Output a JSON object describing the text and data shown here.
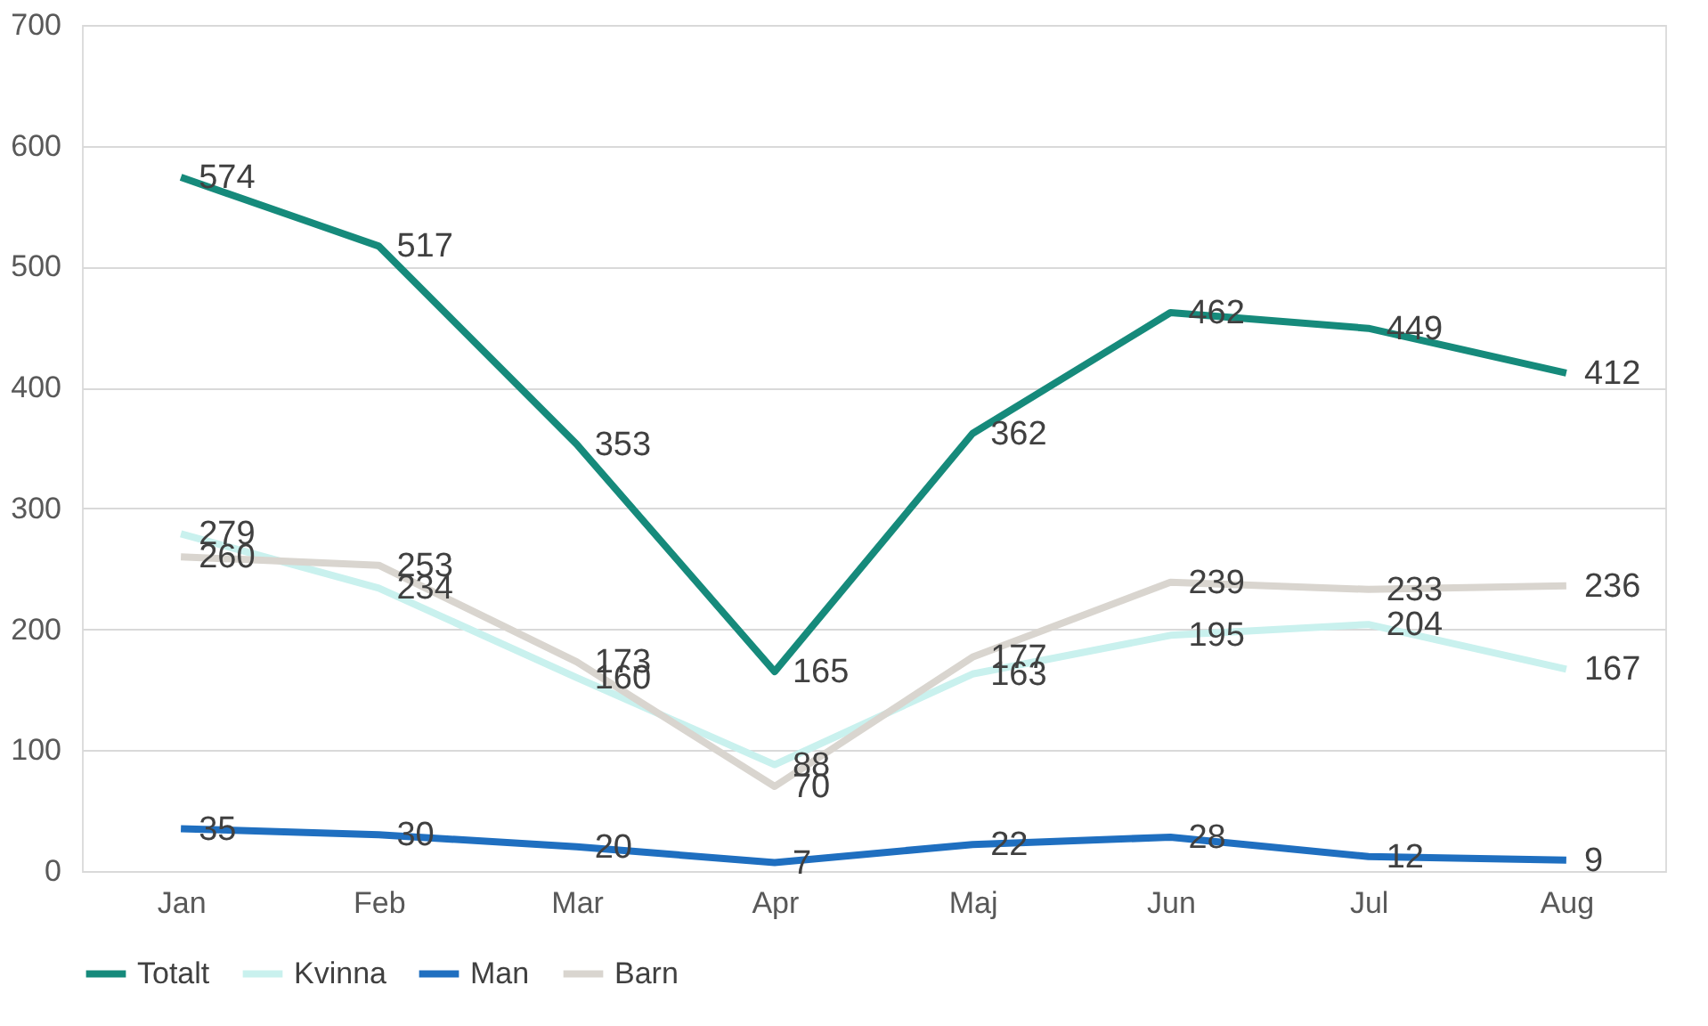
{
  "chart_data": {
    "type": "line",
    "categories": [
      "Jan",
      "Feb",
      "Mar",
      "Apr",
      "Maj",
      "Jun",
      "Jul",
      "Aug"
    ],
    "series": [
      {
        "name": "Totalt",
        "color": "#168a7b",
        "values": [
          574,
          517,
          353,
          165,
          362,
          462,
          449,
          412
        ]
      },
      {
        "name": "Kvinna",
        "color": "#c9f1ee",
        "values": [
          279,
          234,
          160,
          88,
          163,
          195,
          204,
          167
        ]
      },
      {
        "name": "Man",
        "color": "#1f6fc0",
        "values": [
          35,
          30,
          20,
          7,
          22,
          28,
          12,
          9
        ]
      },
      {
        "name": "Barn",
        "color": "#d9d5cf",
        "values": [
          260,
          253,
          173,
          70,
          177,
          239,
          233,
          236
        ]
      }
    ],
    "ylim": [
      0,
      700
    ],
    "yticks": [
      0,
      100,
      200,
      300,
      400,
      500,
      600,
      700
    ],
    "grid": "y",
    "legend": "bottom",
    "data_labels": true,
    "marker": "none",
    "line_style": "solid"
  }
}
